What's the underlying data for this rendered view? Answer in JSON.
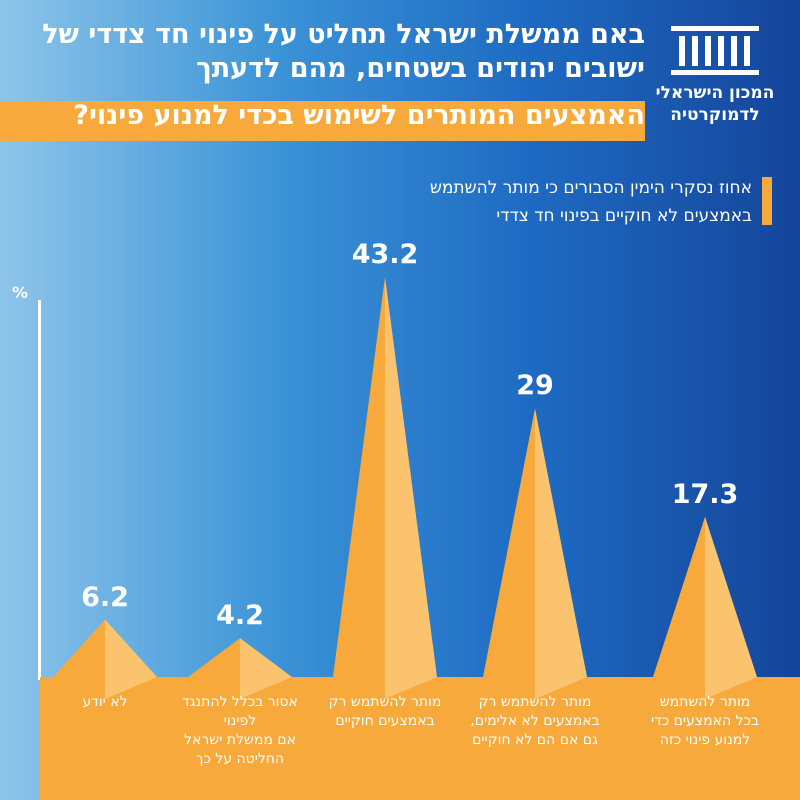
{
  "title": {
    "line1": "באם ממשלת ישראל תחליט על פינוי חד צדדי של",
    "line2": "ישובים יהודים בשטחים, מהם לדעתך",
    "line3": "האמצעים המותרים לשימוש בכדי למנוע פינוי?"
  },
  "logo": {
    "line1": "המכון הישראלי",
    "line2": "לדמוקרטיה",
    "icon": "building-columns-icon"
  },
  "legend": {
    "line1": "אחוז נסקרי הימין הסבורים כי מותר להשתמש",
    "line2": "באמצעים לא חוקיים בפינוי חד צדדי"
  },
  "colors": {
    "accent": "#f7a93b",
    "background_dark": "#14459a",
    "background_light": "#8ec5ea"
  },
  "chart_data": {
    "type": "bar",
    "ylabel": "%",
    "ylim": [
      0,
      50
    ],
    "categories": [
      "לא יודע",
      "אסור בכלל להתנגד לפינוי אם ממשלת ישראל החליטה על כך",
      "מותר להשתמש רק באמצעים חוקיים",
      "מותר להשתמש רק באמצעים לא אלימים, גם אם הם לא חוקיים",
      "מותר להשתמש בכל האמצעים כדי למנוע פינוי כזה"
    ],
    "category_lines": [
      [
        "לא יודע"
      ],
      [
        "אסור בכלל להתנגד לפינוי",
        "אם ממשלת ישראל",
        "החליטה על כך"
      ],
      [
        "מותר להשתמש רק",
        "באמצעים חוקיים"
      ],
      [
        "מותר להשתמש רק",
        "באמצעים לא אלימים,",
        "גם אם הם לא חוקיים"
      ],
      [
        "מותר להשתמש",
        "בכל האמצעים כדי",
        "למנוע פינוי כזה"
      ]
    ],
    "values": [
      6.2,
      4.2,
      43.2,
      29,
      17.3
    ],
    "value_labels": [
      "6.2",
      "4.2",
      "43.2",
      "29",
      "17.3"
    ]
  }
}
